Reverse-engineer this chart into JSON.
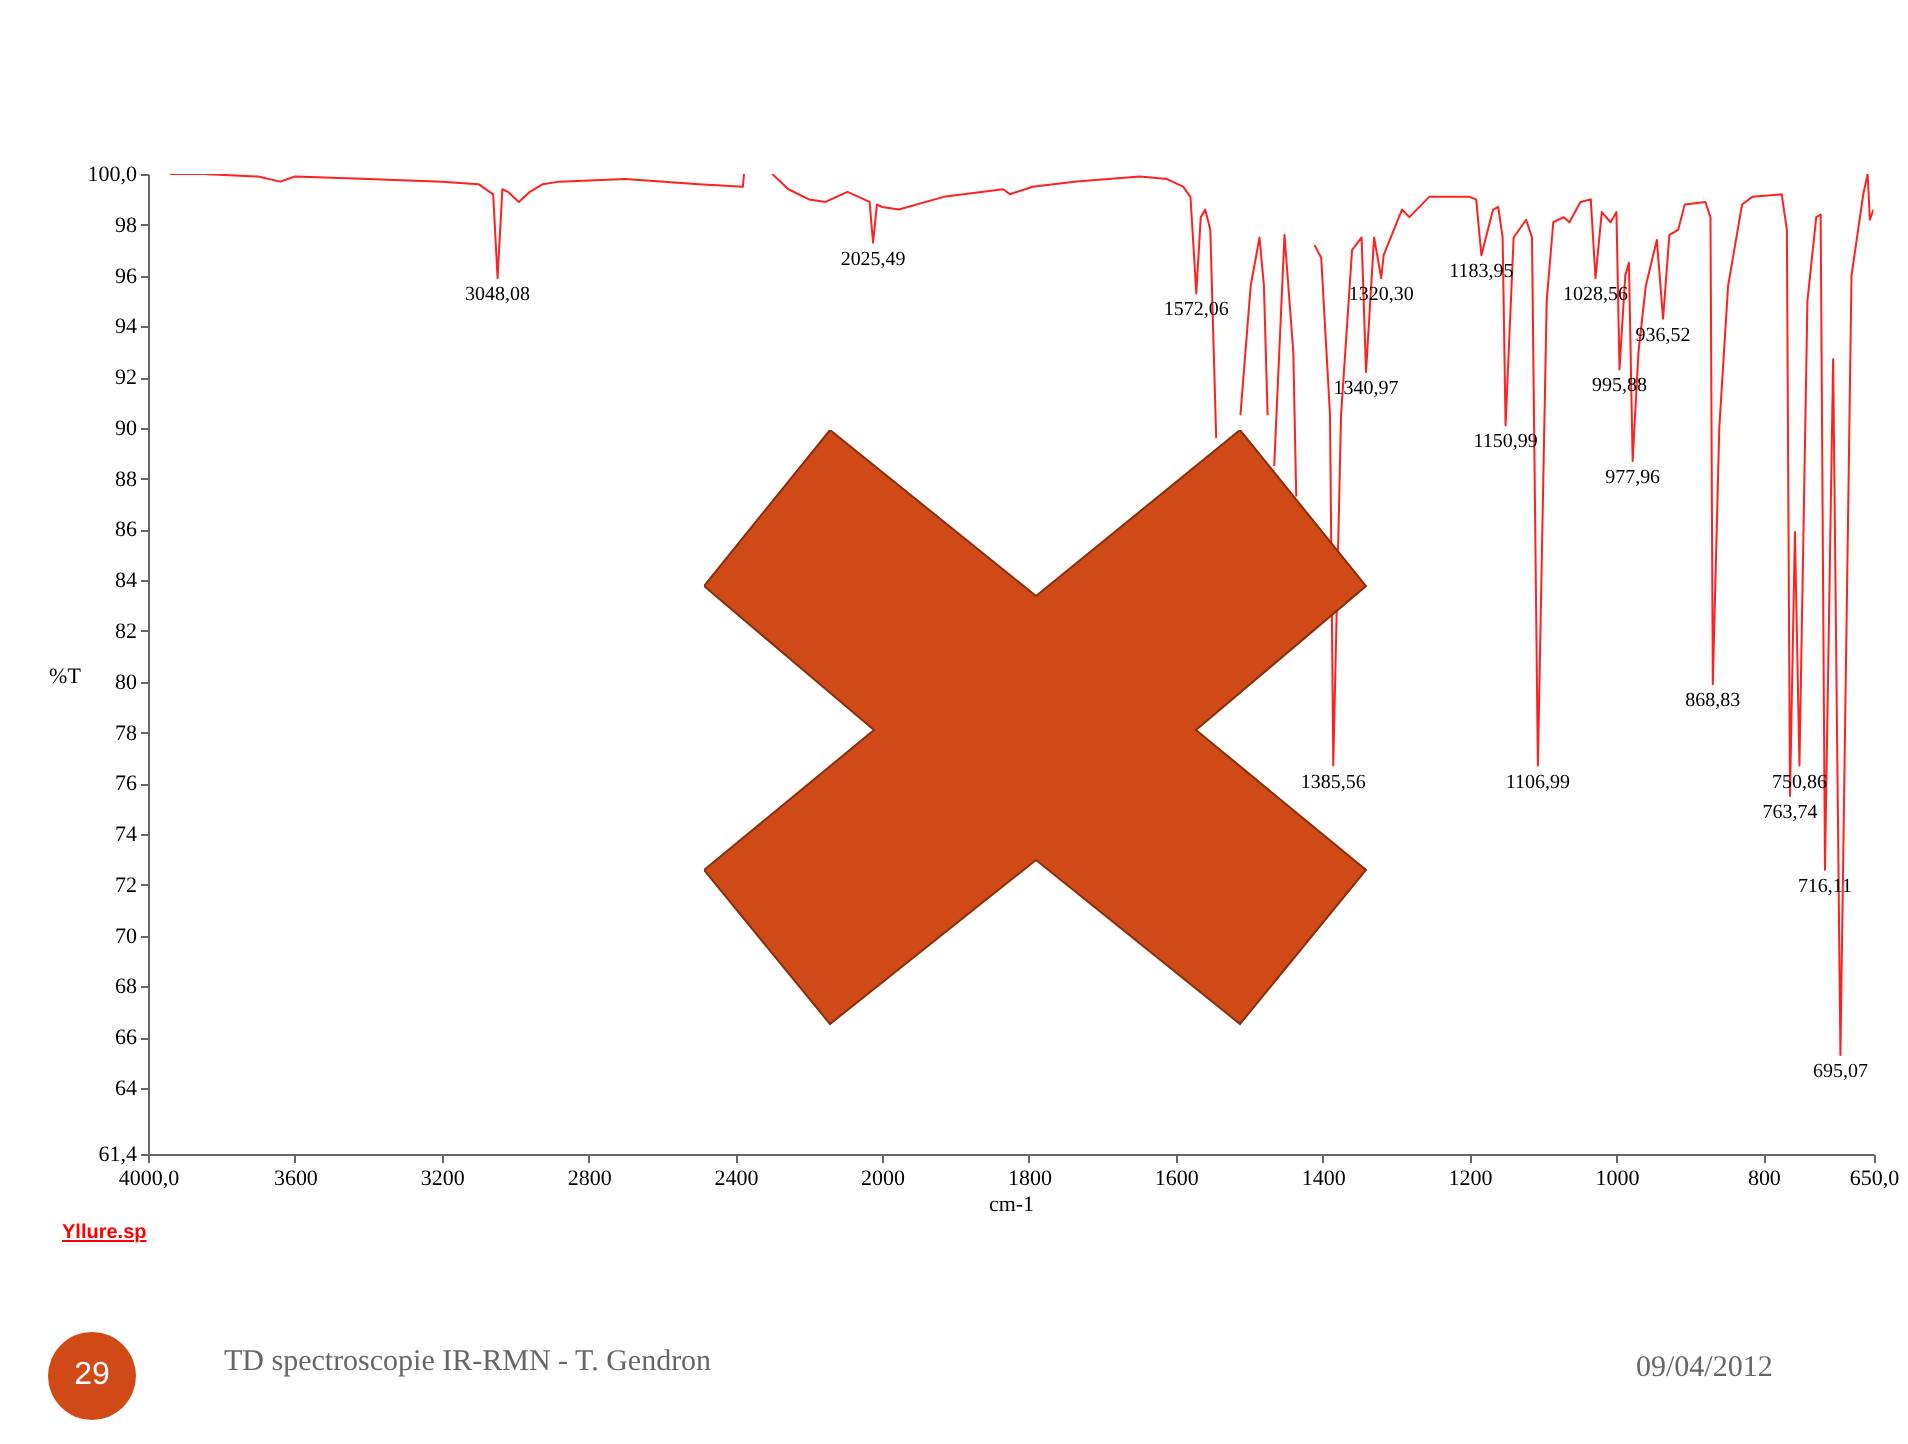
{
  "chart_data": [
    {
      "type": "line",
      "ylabel": "%T",
      "xlim": [
        4000,
        2000
      ],
      "ylim": [
        61.4,
        100
      ],
      "xticks": [
        {
          "value": 4000,
          "label": "4000,0"
        },
        3600,
        3200,
        2800,
        2400
      ],
      "yticks": [
        {
          "value": 61.4,
          "label": "61,4"
        },
        64,
        66,
        68,
        70,
        72,
        74,
        76,
        78,
        80,
        82,
        84,
        86,
        88,
        90,
        92,
        94,
        96,
        98,
        {
          "value": 100,
          "label": "100,0"
        }
      ],
      "series": [
        {
          "color": "#ff2020",
          "x": [
            3940,
            3850,
            3700,
            3640,
            3600,
            3400,
            3200,
            3100,
            3060,
            3048.08,
            3035,
            3020,
            2990,
            2960,
            2925,
            2880,
            2700,
            2500,
            2380,
            2377,
            2340,
            2300,
            2256,
            2200,
            2155,
            2095,
            2035,
            2025.49,
            2015,
            2000
          ],
          "values": [
            100.0,
            100.0,
            99.9,
            99.7,
            99.9,
            99.8,
            99.7,
            99.6,
            99.2,
            95.9,
            99.4,
            99.3,
            98.9,
            99.3,
            99.6,
            99.7,
            99.8,
            99.6,
            99.5,
            100.0,
            null,
            100.0,
            99.4,
            99.0,
            98.9,
            99.3,
            98.9,
            97.3,
            98.8,
            98.7
          ]
        }
      ],
      "annotations": [
        {
          "text": "3048,08",
          "x": 3048.08,
          "y": 95.9
        },
        {
          "text": "2025,49",
          "x": 2025.49,
          "y": 97.3
        },
        "Yllure.sp",
        "29",
        "TD spectroscopie IR-RMN - T. Gendron",
        "09/04/2012"
      ]
    },
    {
      "type": "line",
      "xlabel": "cm-1",
      "tick_labels": "x",
      "xlim": [
        2000,
        650
      ],
      "ylim": [
        61.4,
        100
      ],
      "xticks": [
        2000,
        1800,
        1600,
        1400,
        1200,
        1000,
        800,
        {
          "value": 650,
          "label": "650,0"
        }
      ],
      "series": [
        {
          "color": "#ff2020",
          "x": [
            2000,
            1977,
            1916,
            1835,
            1826,
            1795,
            1735,
            1649,
            1612,
            1590,
            1580,
            1572.06,
            1566,
            1560,
            1553,
            1545,
            1530,
            1512,
            1498,
            1486,
            1480,
            1475,
            1470,
            1466,
            1452,
            1440,
            1436,
            1430,
            1425,
            1411,
            1402,
            1390,
            1385.56,
            1375,
            1360,
            1347,
            1340.97,
            1330,
            1320.3,
            1317,
            1292,
            1282,
            1255,
            1200,
            1191,
            1183.95,
            1168,
            1161,
            1155,
            1150.99,
            1140,
            1123,
            1115,
            1106.99,
            1095,
            1086,
            1072,
            1064,
            1049,
            1035,
            1028.56,
            1020,
            1008,
            1000,
            995.88,
            988,
            983,
            977.96,
            970,
            960,
            945,
            936.52,
            928,
            916,
            907,
            879,
            872,
            868.83,
            860,
            848,
            829,
            815,
            775,
            768,
            763.74,
            757,
            750.86,
            740,
            728,
            722,
            716.11,
            705,
            695.07,
            680,
            664,
            658,
            655,
            650
          ],
          "values": [
            98.7,
            98.6,
            99.1,
            99.4,
            99.2,
            99.5,
            99.7,
            99.9,
            99.8,
            99.5,
            99.1,
            95.3,
            98.3,
            98.6,
            97.8,
            89.6,
            null,
            90.5,
            95.6,
            97.5,
            95.6,
            90.5,
            null,
            88.5,
            97.6,
            93.0,
            87.3,
            null,
            null,
            97.2,
            96.7,
            90.5,
            76.7,
            90.5,
            97.0,
            97.5,
            92.2,
            97.5,
            95.9,
            96.8,
            98.6,
            98.3,
            99.1,
            99.1,
            99.0,
            96.8,
            98.6,
            98.7,
            97.5,
            90.1,
            97.5,
            98.2,
            97.5,
            76.7,
            95.0,
            98.1,
            98.3,
            98.1,
            98.9,
            99.0,
            95.9,
            98.5,
            98.1,
            98.5,
            92.3,
            96.0,
            96.5,
            88.7,
            93.0,
            95.6,
            97.4,
            94.3,
            97.6,
            97.8,
            98.8,
            98.9,
            98.3,
            79.9,
            90.0,
            95.6,
            98.8,
            99.1,
            99.2,
            97.8,
            75.5,
            85.9,
            76.7,
            95.0,
            98.3,
            98.4,
            72.6,
            92.7,
            65.3,
            96.0,
            99.2,
            100.0,
            98.2,
            98.6
          ]
        }
      ],
      "annotations": [
        {
          "text": "1572,06",
          "x": 1572.06,
          "y": 95.3
        },
        {
          "text": "1385,56",
          "x": 1385.56,
          "y": 76.7
        },
        {
          "text": "1340,97",
          "x": 1340.97,
          "y": 92.2
        },
        {
          "text": "1320,30",
          "x": 1320.3,
          "y": 95.9
        },
        {
          "text": "1183,95",
          "x": 1183.95,
          "y": 96.8
        },
        {
          "text": "1150,99",
          "x": 1150.99,
          "y": 90.1
        },
        {
          "text": "1106,99",
          "x": 1106.99,
          "y": 76.7
        },
        {
          "text": "1028,56",
          "x": 1028.56,
          "y": 95.9
        },
        {
          "text": "995,88",
          "x": 995.88,
          "y": 92.3
        },
        {
          "text": "977,96",
          "x": 977.96,
          "y": 88.7
        },
        {
          "text": "936,52",
          "x": 936.52,
          "y": 94.3
        },
        {
          "text": "868,83",
          "x": 868.83,
          "y": 79.9
        },
        {
          "text": "763,74",
          "x": 763.74,
          "y": 75.5
        },
        {
          "text": "750,86",
          "x": 750.86,
          "y": 76.7
        },
        {
          "text": "716,11",
          "x": 716.11,
          "y": 72.6
        },
        {
          "text": "695,07",
          "x": 695.07,
          "y": 65.3
        }
      ]
    }
  ]
}
